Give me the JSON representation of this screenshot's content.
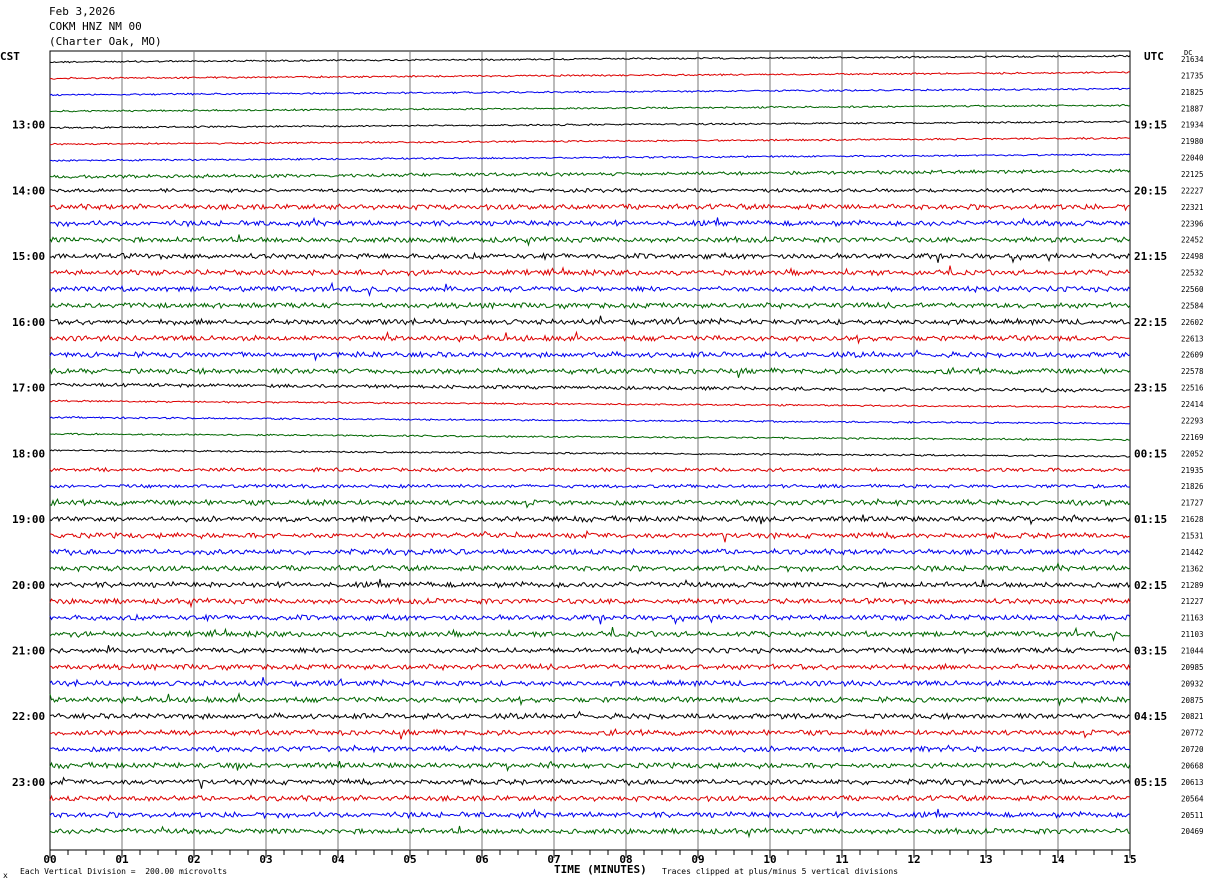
{
  "header": {
    "date": "Feb 3,2026",
    "station": "COKM HNZ NM 00",
    "location": "(Charter Oak, MO)"
  },
  "left_tz": "CST",
  "right_tz": "UTC",
  "dc_label": "DC",
  "footer": {
    "mark": "x",
    "scale_note": "Each Vertical Division =  200.00 microvolts",
    "clip_note": "Traces clipped at plus/minus 5 vertical divisions"
  },
  "chart_data": {
    "type": "line",
    "title": "",
    "xlabel": "TIME (MINUTES)",
    "xlim": [
      0,
      15
    ],
    "x_ticks": [
      "00",
      "01",
      "02",
      "03",
      "04",
      "05",
      "06",
      "07",
      "08",
      "09",
      "10",
      "11",
      "12",
      "13",
      "14",
      "15"
    ],
    "minor_ticks_per_minute": 4,
    "grid": true,
    "trace_colors": [
      "#000000",
      "#dd0000",
      "#0000ee",
      "#006600"
    ],
    "left_hour_labels": [
      "13:00",
      "14:00",
      "15:00",
      "16:00",
      "17:00",
      "18:00",
      "19:00",
      "20:00",
      "21:00",
      "22:00",
      "23:00"
    ],
    "right_hour_labels": [
      "19:15",
      "20:15",
      "21:15",
      "22:15",
      "23:15",
      "00:15",
      "01:15",
      "02:15",
      "03:15",
      "04:15",
      "05:15"
    ],
    "hour_label_first_trace": 4,
    "traces_per_hour": 4,
    "trace_count": 48,
    "dc_offsets": [
      21634,
      21735,
      21825,
      21887,
      21934,
      21980,
      22040,
      22125,
      22227,
      22321,
      22396,
      22452,
      22498,
      22532,
      22560,
      22584,
      22602,
      22613,
      22609,
      22578,
      22516,
      22414,
      22293,
      22169,
      22052,
      21935,
      21826,
      21727,
      21628,
      21531,
      21442,
      21362,
      21289,
      21227,
      21163,
      21103,
      21044,
      20985,
      20932,
      20875,
      20821,
      20772,
      20720,
      20668,
      20613,
      20564,
      20511,
      20469
    ],
    "noise_amplitude": [
      1,
      1,
      1,
      1,
      1,
      1,
      1,
      2,
      2,
      3,
      3,
      3,
      3,
      3,
      3,
      3,
      3,
      3,
      3,
      3,
      2,
      1,
      1,
      1,
      1,
      2,
      2,
      3,
      3,
      3,
      3,
      3,
      3,
      3,
      3,
      3,
      3,
      3,
      3,
      3,
      3,
      3,
      3,
      3,
      3,
      3,
      3,
      3
    ],
    "trace_tilt": [
      1,
      1,
      1,
      1,
      1,
      1,
      1,
      1,
      0,
      0,
      0,
      0,
      0,
      0,
      0,
      0,
      0,
      0,
      0,
      0,
      -1,
      -1,
      -1,
      -1,
      -1,
      0,
      0,
      0,
      0,
      0,
      0,
      0,
      0,
      0,
      0,
      0,
      0,
      0,
      0,
      0,
      0,
      0,
      0,
      0,
      0,
      0,
      0,
      0
    ]
  }
}
